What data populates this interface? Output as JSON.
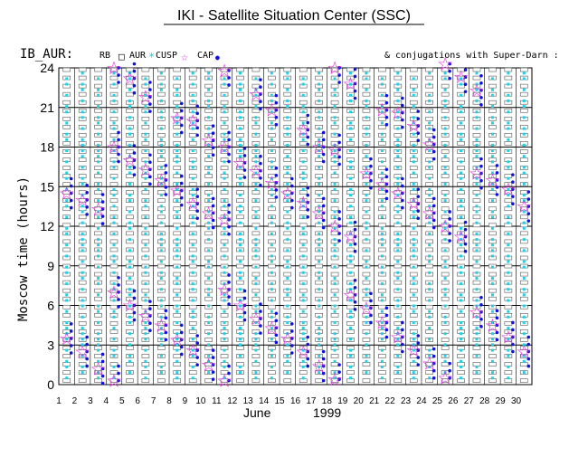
{
  "chart_data": {
    "type": "scatter",
    "title": "IKI - Satellite Situation Center (SSC)",
    "satellite_label": "IB_AUR:",
    "legend": [
      {
        "label": "RB",
        "marker": "none"
      },
      {
        "label": "AUR",
        "marker": "square"
      },
      {
        "label": "CUSP",
        "marker": "cyan-star"
      },
      {
        "label": "CAP",
        "marker": "blue-dot"
      }
    ],
    "cap_marker_symbol": "☆",
    "legend_open_square": "□",
    "legend_cusp_star": "*",
    "legend_cap_dot": "●",
    "conjugation_note": "& conjugations with Super-Darn :",
    "xlabel_month": "June",
    "xlabel_year": "1999",
    "ylabel": "Moscow time (hours)",
    "xlim": [
      1,
      31
    ],
    "ylim": [
      0,
      24
    ],
    "x_ticks": [
      1,
      2,
      3,
      4,
      5,
      6,
      7,
      8,
      9,
      10,
      11,
      12,
      13,
      14,
      15,
      16,
      17,
      18,
      19,
      20,
      21,
      22,
      23,
      24,
      25,
      26,
      27,
      28,
      29,
      30
    ],
    "y_ticks": [
      0,
      3,
      6,
      9,
      12,
      15,
      18,
      21,
      24
    ],
    "grid": true,
    "passes": [
      {
        "day": 1,
        "times": [
          3.5,
          14.5
        ]
      },
      {
        "day": 2,
        "times": [
          2.5,
          14.0
        ]
      },
      {
        "day": 3,
        "times": [
          1.2,
          13.3
        ]
      },
      {
        "day": 4,
        "times": [
          0.3,
          7.0,
          18.0,
          24.0
        ]
      },
      {
        "day": 5,
        "times": [
          6.0,
          17.0,
          23.2
        ]
      },
      {
        "day": 6,
        "times": [
          5.2,
          16.3,
          21.8
        ]
      },
      {
        "day": 7,
        "times": [
          4.5,
          15.5
        ]
      },
      {
        "day": 8,
        "times": [
          3.4,
          14.7,
          20.2
        ]
      },
      {
        "day": 9,
        "times": [
          2.6,
          13.7,
          20.0
        ]
      },
      {
        "day": 10,
        "times": [
          1.5,
          13.0,
          18.5
        ]
      },
      {
        "day": 11,
        "times": [
          0.3,
          7.2,
          12.5,
          18.0,
          23.8
        ]
      },
      {
        "day": 12,
        "times": [
          6.0,
          16.8
        ]
      },
      {
        "day": 13,
        "times": [
          5.0,
          16.2,
          22.0
        ]
      },
      {
        "day": 14,
        "times": [
          4.3,
          15.3,
          20.8
        ]
      },
      {
        "day": 15,
        "times": [
          3.5,
          14.5
        ]
      },
      {
        "day": 16,
        "times": [
          2.5,
          13.8,
          19.3
        ]
      },
      {
        "day": 17,
        "times": [
          1.4,
          13.0,
          18.0
        ]
      },
      {
        "day": 18,
        "times": [
          0.4,
          12.0,
          17.8,
          24.0
        ]
      },
      {
        "day": 19,
        "times": [
          6.8,
          11.2,
          22.8
        ]
      },
      {
        "day": 20,
        "times": [
          5.8,
          16.0
        ]
      },
      {
        "day": 21,
        "times": [
          4.7,
          15.2,
          20.8
        ]
      },
      {
        "day": 22,
        "times": [
          3.6,
          14.5,
          20.6
        ]
      },
      {
        "day": 23,
        "times": [
          2.6,
          13.7,
          19.6
        ]
      },
      {
        "day": 24,
        "times": [
          1.6,
          13.0,
          18.2
        ]
      },
      {
        "day": 25,
        "times": [
          0.5,
          12.0,
          24.3
        ]
      },
      {
        "day": 26,
        "times": [
          11.2,
          23.3
        ]
      },
      {
        "day": 27,
        "times": [
          5.5,
          16.0,
          22.3
        ]
      },
      {
        "day": 28,
        "times": [
          4.5,
          15.5
        ]
      },
      {
        "day": 29,
        "times": [
          3.6,
          14.8
        ]
      },
      {
        "day": 30,
        "times": [
          2.5,
          13.5
        ]
      }
    ]
  }
}
